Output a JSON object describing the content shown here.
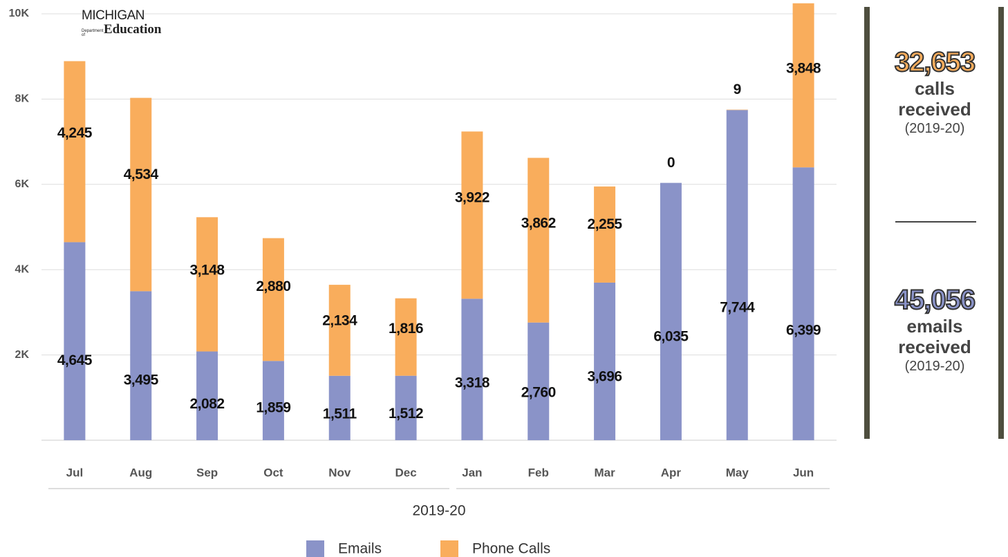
{
  "chart_data": {
    "type": "stacked-bar",
    "categories": [
      "Jul",
      "Aug",
      "Sep",
      "Oct",
      "Nov",
      "Dec",
      "Jan",
      "Feb",
      "Mar",
      "Apr",
      "May",
      "Jun"
    ],
    "series": [
      {
        "name": "Emails",
        "color": "#8a93c8",
        "values": [
          4645,
          3495,
          2082,
          1859,
          1511,
          1512,
          3318,
          2760,
          3696,
          6035,
          7744,
          6399
        ],
        "value_labels": [
          "4,645",
          "3,495",
          "2,082",
          "1,859",
          "1,511",
          "1,512",
          "3,318",
          "2,760",
          "3,696",
          "6,035",
          "7,744",
          "6,399"
        ]
      },
      {
        "name": "Phone Calls",
        "color": "#f9ad5c",
        "values": [
          4245,
          4534,
          3148,
          2880,
          2134,
          1816,
          3922,
          3862,
          2255,
          0,
          9,
          3848
        ],
        "value_labels": [
          "4,245",
          "4,534",
          "3,148",
          "2,880",
          "2,134",
          "1,816",
          "3,922",
          "3,862",
          "2,255",
          "0",
          "9",
          "3,848"
        ]
      }
    ],
    "x_group_label": "2019-20",
    "ylim": [
      0,
      10000
    ],
    "yticks": [
      {
        "value": 2000,
        "label": "2K"
      },
      {
        "value": 4000,
        "label": "4K"
      },
      {
        "value": 6000,
        "label": "6K"
      },
      {
        "value": 8000,
        "label": "8K"
      },
      {
        "value": 10000,
        "label": "10K"
      }
    ],
    "grid": true,
    "legend": "bottom"
  },
  "logo": {
    "name": "MICHIGAN",
    "dept": "Department of",
    "sub": "Education"
  },
  "summary": [
    {
      "value": "32,653",
      "label": "calls received",
      "period": "(2019-20)"
    },
    {
      "value": "45,056",
      "label": "emails received",
      "period": "(2019-20)"
    }
  ]
}
